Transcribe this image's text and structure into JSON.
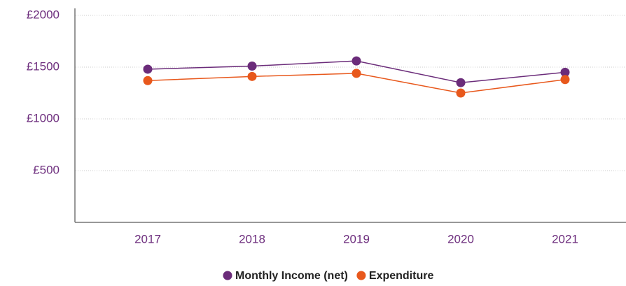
{
  "chart_data": {
    "type": "line",
    "categories": [
      "2017",
      "2018",
      "2019",
      "2020",
      "2021"
    ],
    "series": [
      {
        "name": "Monthly Income (net)",
        "color": "#6b2c7a",
        "values": [
          1480,
          1510,
          1560,
          1350,
          1450
        ]
      },
      {
        "name": "Expenditure",
        "color": "#e8581c",
        "values": [
          1370,
          1410,
          1440,
          1250,
          1380
        ]
      }
    ],
    "ylim": [
      0,
      2000
    ],
    "yticks": [
      {
        "value": 500,
        "label": "£500"
      },
      {
        "value": 1000,
        "label": "£1000"
      },
      {
        "value": 1500,
        "label": "£1500"
      },
      {
        "value": 2000,
        "label": "£2000"
      }
    ],
    "grid": true
  }
}
